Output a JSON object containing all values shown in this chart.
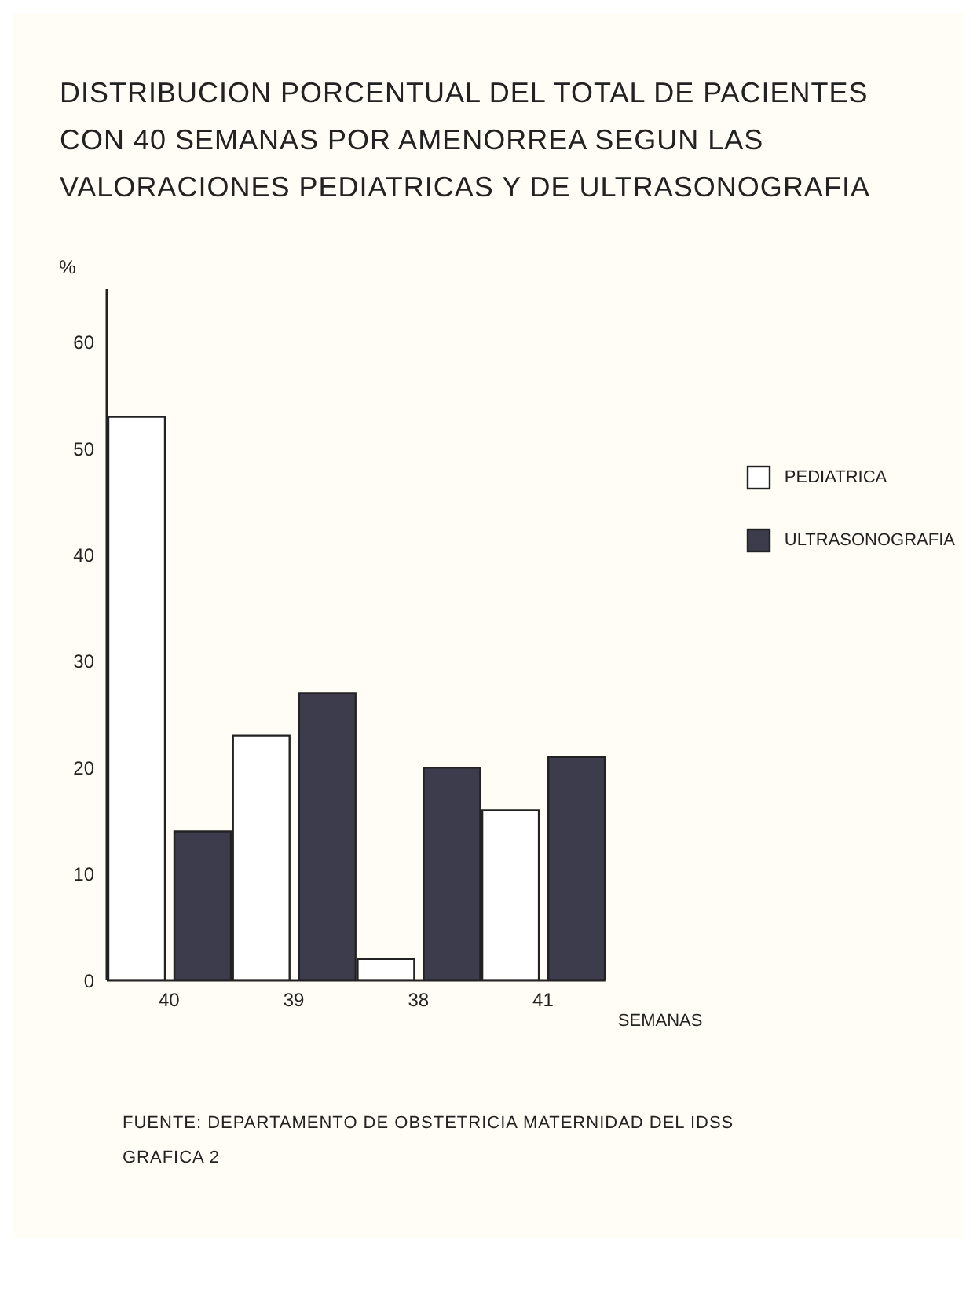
{
  "chart_data": {
    "type": "bar",
    "title": "DISTRIBUCION PORCENTUAL DEL TOTAL DE PACIENTES CON 40 SEMANAS POR AMENORREA SEGUN LAS VALORACIONES PEDIATRICAS Y DE ULTRASONOGRAFIA",
    "xlabel": "SEMANAS",
    "ylabel": "%",
    "categories": [
      "40",
      "39",
      "38",
      "41"
    ],
    "series": [
      {
        "name": "PEDIATRICA",
        "color": "#ffffff",
        "values": [
          53,
          23,
          2,
          16
        ]
      },
      {
        "name": "ULTRASONOGRAFIA",
        "color": "#3c3c4c",
        "values": [
          14,
          27,
          20,
          21
        ]
      }
    ],
    "ylim": [
      0,
      65
    ],
    "yticks": [
      0,
      10,
      20,
      30,
      40,
      50,
      60
    ],
    "grid": false,
    "legend": "right",
    "annotations": [
      "FUENTE: DEPARTAMENTO DE OBSTETRICIA MATERNIDAD DEL IDSS",
      "GRAFICA 2"
    ]
  }
}
